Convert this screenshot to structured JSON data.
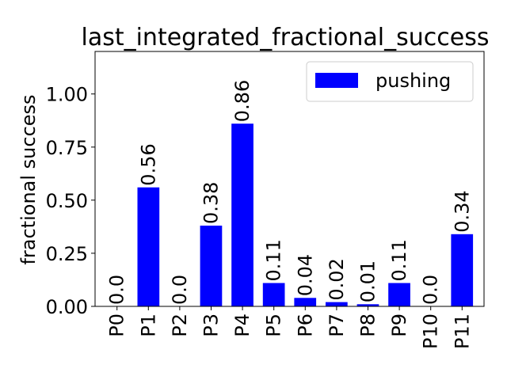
{
  "chart_data": {
    "type": "bar",
    "title": "last_integrated_fractional_success",
    "xlabel": "",
    "ylabel": "fractional success",
    "categories": [
      "P0",
      "P1",
      "P2",
      "P3",
      "P4",
      "P5",
      "P6",
      "P7",
      "P8",
      "P9",
      "P10",
      "P11"
    ],
    "series": [
      {
        "name": "pushing",
        "color": "#0000ff",
        "values": [
          0.0,
          0.56,
          0.0,
          0.38,
          0.86,
          0.11,
          0.04,
          0.02,
          0.01,
          0.11,
          0.0,
          0.34
        ],
        "value_labels": [
          "0.0",
          "0.56",
          "0.0",
          "0.38",
          "0.86",
          "0.11",
          "0.04",
          "0.02",
          "0.01",
          "0.11",
          "0.0",
          "0.34"
        ]
      }
    ],
    "ylim": [
      0,
      1.2
    ],
    "yticks": [
      "0.00",
      "0.25",
      "0.50",
      "0.75",
      "1.00"
    ],
    "ytick_values": [
      0,
      0.25,
      0.5,
      0.75,
      1.0
    ],
    "grid": false,
    "legend": "upper right"
  }
}
